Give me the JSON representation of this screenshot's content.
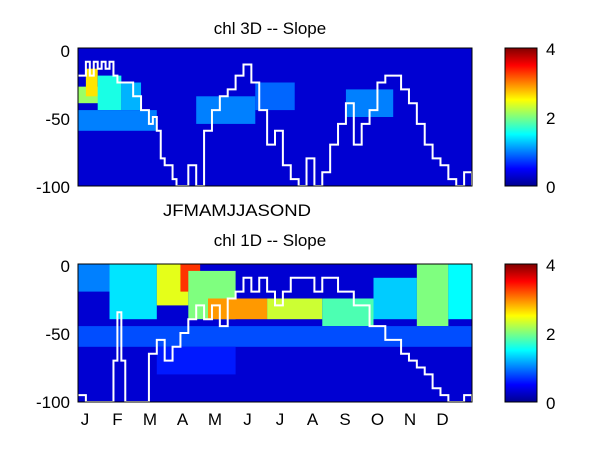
{
  "chart_data": [
    {
      "type": "heatmap",
      "title": "chl 3D   -- Slope",
      "ylim": [
        -100,
        0
      ],
      "y_ticks": [
        "0",
        "-50",
        "-100"
      ],
      "x_tick_labels_text": "JFMAMJJASOND",
      "colorbar": {
        "min": 0,
        "max": 4,
        "ticks": [
          "0",
          "2",
          "4"
        ],
        "colormap": "jet"
      },
      "heat_blocks": [
        {
          "x0": 0.0,
          "x1": 0.08,
          "y0": -40,
          "y1": -28,
          "value": 2.1
        },
        {
          "x0": 0.02,
          "x1": 0.05,
          "y0": -35,
          "y1": -15,
          "value": 2.6
        },
        {
          "x0": 0.05,
          "x1": 0.11,
          "y0": -45,
          "y1": -20,
          "value": 1.6
        },
        {
          "x0": 0.11,
          "x1": 0.16,
          "y0": -45,
          "y1": -25,
          "value": 1.2
        },
        {
          "x0": 0.0,
          "x1": 0.2,
          "y0": -60,
          "y1": -45,
          "value": 1.0
        },
        {
          "x0": 0.3,
          "x1": 0.45,
          "y0": -55,
          "y1": -35,
          "value": 1.0
        },
        {
          "x0": 0.45,
          "x1": 0.55,
          "y0": -45,
          "y1": -25,
          "value": 0.9
        },
        {
          "x0": 0.68,
          "x1": 0.8,
          "y0": -50,
          "y1": -30,
          "value": 1.0
        }
      ],
      "mld_line": {
        "x": [
          0,
          0.02,
          0.03,
          0.04,
          0.05,
          0.06,
          0.07,
          0.08,
          0.09,
          0.1,
          0.12,
          0.14,
          0.16,
          0.18,
          0.19,
          0.2,
          0.21,
          0.22,
          0.24,
          0.25,
          0.26,
          0.28,
          0.3,
          0.32,
          0.34,
          0.36,
          0.38,
          0.4,
          0.42,
          0.44,
          0.46,
          0.48,
          0.5,
          0.52,
          0.54,
          0.56,
          0.58,
          0.6,
          0.62,
          0.64,
          0.66,
          0.68,
          0.7,
          0.72,
          0.74,
          0.76,
          0.78,
          0.8,
          0.82,
          0.84,
          0.86,
          0.88,
          0.9,
          0.92,
          0.94,
          0.96,
          0.98,
          1.0
        ],
        "y": [
          -20,
          -10,
          -20,
          -10,
          -15,
          -10,
          -15,
          -10,
          -20,
          -25,
          -25,
          -35,
          -45,
          -55,
          -50,
          -60,
          -80,
          -85,
          -95,
          -100,
          -100,
          -85,
          -100,
          -60,
          -45,
          -35,
          -30,
          -20,
          -12,
          -25,
          -45,
          -70,
          -60,
          -85,
          -95,
          -100,
          -80,
          -100,
          -90,
          -70,
          -55,
          -40,
          -70,
          -55,
          -45,
          -25,
          -20,
          -20,
          -30,
          -40,
          -55,
          -70,
          -80,
          -85,
          -95,
          -100,
          -90,
          -100
        ]
      }
    },
    {
      "type": "heatmap",
      "title": "chl 1D   -- Slope",
      "ylim": [
        -100,
        0
      ],
      "y_ticks": [
        "0",
        "-50",
        "-100"
      ],
      "x_tick_labels": [
        "J",
        "F",
        "M",
        "A",
        "M",
        "J",
        "J",
        "A",
        "S",
        "O",
        "N",
        "D"
      ],
      "colorbar": {
        "min": 0,
        "max": 4,
        "ticks": [
          "0",
          "2",
          "4"
        ],
        "colormap": "jet"
      },
      "heat_blocks": [
        {
          "x0": 0.0,
          "x1": 0.08,
          "y0": -20,
          "y1": 0,
          "value": 1.0
        },
        {
          "x0": 0.08,
          "x1": 0.2,
          "y0": -40,
          "y1": 0,
          "value": 1.4
        },
        {
          "x0": 0.2,
          "x1": 0.28,
          "y0": -30,
          "y1": 0,
          "value": 2.4
        },
        {
          "x0": 0.26,
          "x1": 0.31,
          "y0": -20,
          "y1": 0,
          "value": 3.3
        },
        {
          "x0": 0.28,
          "x1": 0.4,
          "y0": -40,
          "y1": -5,
          "value": 2.0
        },
        {
          "x0": 0.33,
          "x1": 0.48,
          "y0": -40,
          "y1": -25,
          "value": 2.9
        },
        {
          "x0": 0.48,
          "x1": 0.62,
          "y0": -40,
          "y1": -25,
          "value": 2.3
        },
        {
          "x0": 0.62,
          "x1": 0.75,
          "y0": -45,
          "y1": -25,
          "value": 1.8
        },
        {
          "x0": 0.75,
          "x1": 0.86,
          "y0": -40,
          "y1": -10,
          "value": 1.3
        },
        {
          "x0": 0.86,
          "x1": 0.94,
          "y0": -45,
          "y1": 0,
          "value": 2.0
        },
        {
          "x0": 0.94,
          "x1": 1.0,
          "y0": -40,
          "y1": 0,
          "value": 1.5
        },
        {
          "x0": 0.0,
          "x1": 1.0,
          "y0": -60,
          "y1": -45,
          "value": 0.8
        },
        {
          "x0": 0.2,
          "x1": 0.4,
          "y0": -80,
          "y1": -60,
          "value": 0.6
        }
      ],
      "mld_line": {
        "x": [
          0,
          0.02,
          0.04,
          0.06,
          0.08,
          0.09,
          0.1,
          0.11,
          0.12,
          0.14,
          0.16,
          0.18,
          0.2,
          0.22,
          0.24,
          0.26,
          0.28,
          0.3,
          0.32,
          0.34,
          0.36,
          0.38,
          0.4,
          0.42,
          0.44,
          0.46,
          0.48,
          0.5,
          0.52,
          0.54,
          0.56,
          0.58,
          0.6,
          0.62,
          0.64,
          0.66,
          0.68,
          0.7,
          0.72,
          0.74,
          0.76,
          0.78,
          0.8,
          0.82,
          0.84,
          0.86,
          0.88,
          0.9,
          0.92,
          0.94,
          0.96,
          0.98,
          1.0
        ],
        "y": [
          -95,
          -100,
          -100,
          -100,
          -100,
          -70,
          -35,
          -70,
          -100,
          -100,
          -100,
          -65,
          -55,
          -70,
          -60,
          -50,
          -40,
          -30,
          -40,
          -30,
          -45,
          -25,
          -20,
          -10,
          -20,
          -10,
          -20,
          -30,
          -20,
          -10,
          -10,
          -10,
          -20,
          -10,
          -10,
          -20,
          -20,
          -30,
          -30,
          -45,
          -45,
          -55,
          -55,
          -65,
          -70,
          -75,
          -80,
          -90,
          -95,
          -100,
          -100,
          -95,
          -100
        ]
      }
    }
  ]
}
